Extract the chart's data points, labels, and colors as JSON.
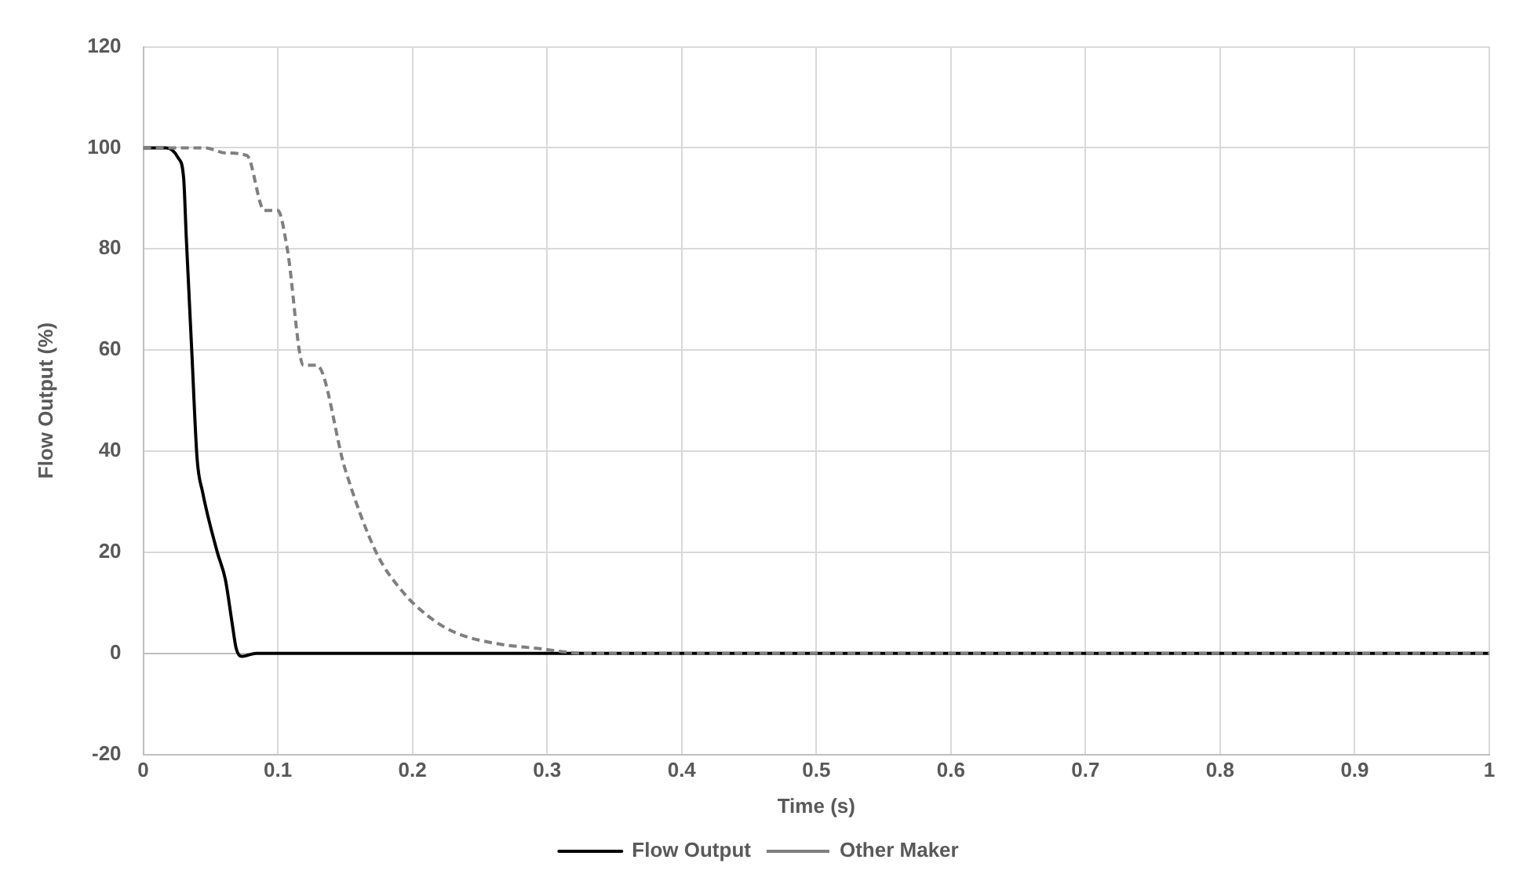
{
  "chart_data": {
    "type": "line",
    "xlabel": "Time (s)",
    "ylabel": "Flow Output (%)",
    "xlim": [
      0,
      1
    ],
    "xticks": [
      0,
      0.1,
      0.2,
      0.3,
      0.4,
      0.5,
      0.6,
      0.7,
      0.8,
      0.9,
      1
    ],
    "ylim": [
      -20,
      120
    ],
    "yticks": [
      -20,
      0,
      20,
      40,
      60,
      80,
      100,
      120
    ],
    "grid": true,
    "legend": "bottom",
    "marker": "none",
    "series": [
      {
        "name": "Flow Output",
        "color": "#000000",
        "line_style": "solid",
        "x": [
          0,
          0.017,
          0.026,
          0.03,
          0.032,
          0.036,
          0.04,
          0.044,
          0.055,
          0.061,
          0.066,
          0.069,
          0.073,
          0.084,
          0.2,
          0.5,
          1
        ],
        "values": [
          100,
          100,
          98,
          94,
          82,
          60,
          38.5,
          32,
          20,
          14.6,
          6,
          1,
          -0.6,
          0,
          0,
          0,
          0
        ]
      },
      {
        "name": "Other Maker",
        "color": "#7f7f7f",
        "line_style": "dashed",
        "x": [
          0,
          0.046,
          0.061,
          0.077,
          0.09,
          0.1,
          0.107,
          0.119,
          0.129,
          0.15,
          0.173,
          0.192,
          0.211,
          0.231,
          0.261,
          0.292,
          0.33,
          0.5,
          1
        ],
        "values": [
          100,
          100,
          99,
          98.5,
          87.6,
          87.6,
          80,
          57,
          57,
          36.4,
          20,
          12.4,
          7.5,
          4.2,
          2,
          1,
          0,
          0,
          0
        ]
      }
    ]
  }
}
